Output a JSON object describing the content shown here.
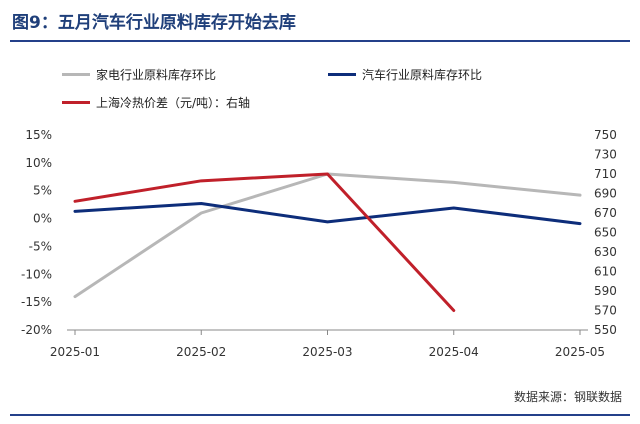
{
  "title": "图9：五月汽车行业原料库存开始去库",
  "source": "数据来源：钢联数据",
  "chart_data": {
    "type": "line",
    "categories": [
      "2025-01",
      "2025-02",
      "2025-03",
      "2025-04",
      "2025-05"
    ],
    "left_ylim": [
      -20,
      15
    ],
    "left_ticks": [
      "15%",
      "10%",
      "5%",
      "0%",
      "-5%",
      "-10%",
      "-15%",
      "-20%"
    ],
    "left_tick_values": [
      15,
      10,
      5,
      0,
      -5,
      -10,
      -15,
      -20
    ],
    "right_ylim": [
      550,
      750
    ],
    "right_ticks": [
      "750",
      "730",
      "710",
      "690",
      "670",
      "650",
      "630",
      "610",
      "590",
      "570",
      "550"
    ],
    "right_tick_values": [
      750,
      730,
      710,
      690,
      670,
      650,
      630,
      610,
      590,
      570,
      550
    ],
    "series": [
      {
        "name": "家电行业原料库存环比",
        "axis": "left",
        "color": "#b7b7b7",
        "values": [
          -14,
          1,
          8,
          6.5,
          4.2
        ]
      },
      {
        "name": "汽车行业原料库存环比",
        "axis": "left",
        "color": "#0d2d7a",
        "values": [
          1.3,
          2.7,
          -0.6,
          1.9,
          -0.9
        ]
      },
      {
        "name": "上海冷热价差（元/吨）：右轴",
        "axis": "right",
        "color": "#c0202a",
        "values": [
          682,
          703,
          710,
          570,
          null
        ]
      }
    ]
  }
}
